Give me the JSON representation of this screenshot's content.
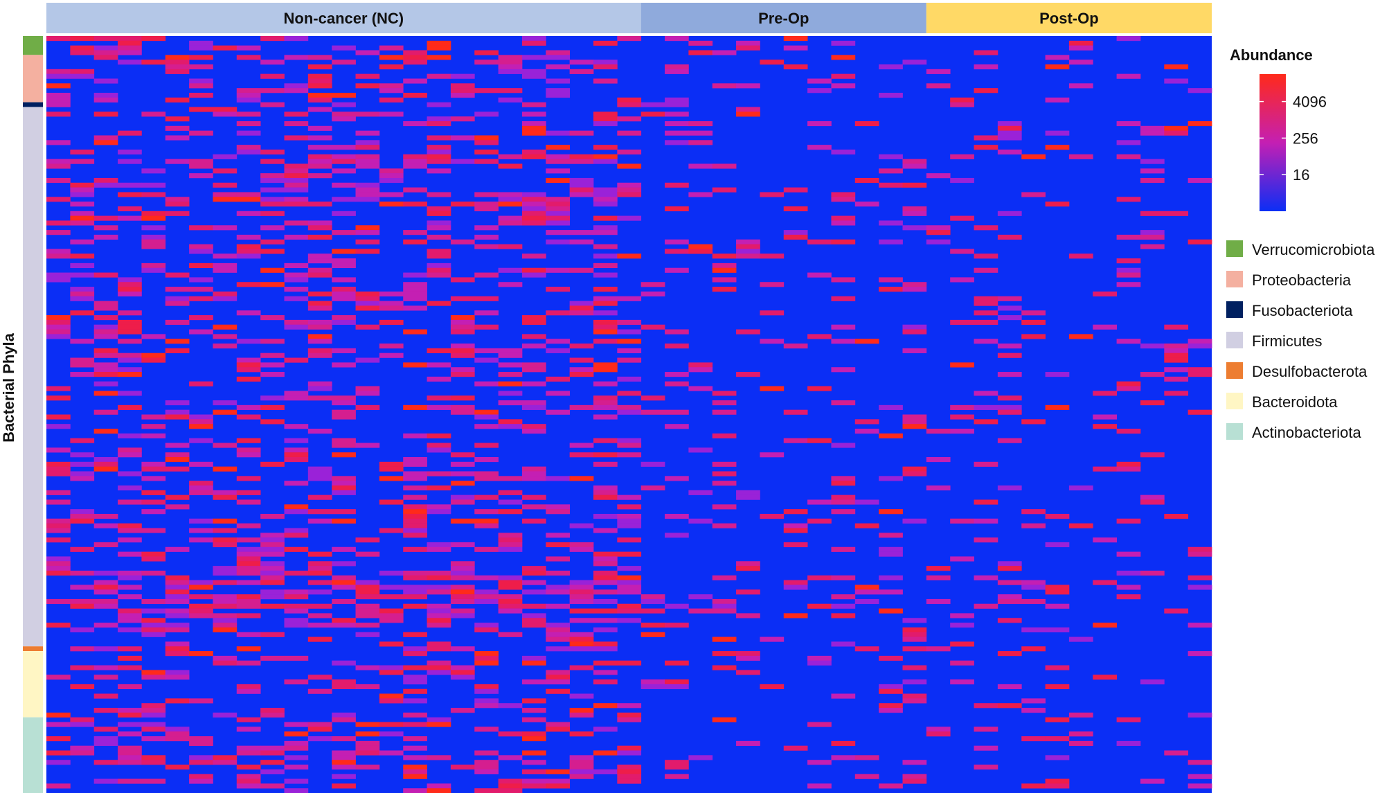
{
  "chart_data": {
    "type": "heatmap",
    "title": "",
    "row_axis_label": "Bacterial Phyla",
    "column_groups": [
      {
        "label": "Non-cancer (NC)",
        "color": "#B4C7E7",
        "columns": 25
      },
      {
        "label": "Pre-Op",
        "color": "#8FAADC",
        "columns": 12
      },
      {
        "label": "Post-Op",
        "color": "#FFD966",
        "columns": 12
      }
    ],
    "row_count": 160,
    "row_annotation": [
      {
        "phylum": "Verrucomicrobiota",
        "color": "#70AD47",
        "rows": 4
      },
      {
        "phylum": "Proteobacteria",
        "color": "#F4B0A0",
        "rows": 10
      },
      {
        "phylum": "Fusobacteriota",
        "color": "#002060",
        "rows": 1
      },
      {
        "phylum": "Firmicutes",
        "color": "#D1CFE2",
        "rows": 114
      },
      {
        "phylum": "Desulfobacterota",
        "color": "#ED7D31",
        "rows": 1
      },
      {
        "phylum": "Bacteroidota",
        "color": "#FFF6C4",
        "rows": 14
      },
      {
        "phylum": "Actinobacteriota",
        "color": "#B8E0D4",
        "rows": 16
      }
    ],
    "color_scale": {
      "title": "Abundance",
      "scale": "log2",
      "min_color": "#0B2EF5",
      "mid_color": "#C41FB3",
      "max_color": "#FF2A1A",
      "ticks": [
        "4096",
        "256",
        "16"
      ],
      "tick_values": [
        4096,
        256,
        16
      ],
      "range": [
        1,
        32768
      ]
    },
    "legend": {
      "items": [
        {
          "label": "Verrucomicrobiota",
          "color": "#70AD47"
        },
        {
          "label": "Proteobacteria",
          "color": "#F4B0A0"
        },
        {
          "label": "Fusobacteriota",
          "color": "#002060"
        },
        {
          "label": "Firmicutes",
          "color": "#D1CFE2"
        },
        {
          "label": "Desulfobacterota",
          "color": "#ED7D31"
        },
        {
          "label": "Bacteroidota",
          "color": "#FFF6C4"
        },
        {
          "label": "Actinobacteriota",
          "color": "#B8E0D4"
        }
      ]
    },
    "grid": false,
    "legend_position": "right"
  }
}
